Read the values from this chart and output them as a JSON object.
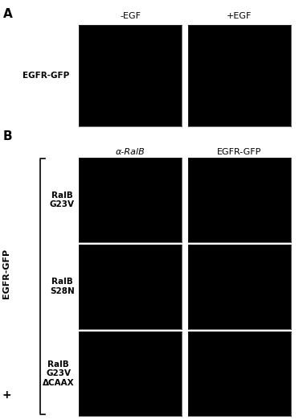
{
  "figure_width": 3.77,
  "figure_height": 5.22,
  "panel_A_label": "A",
  "panel_B_label": "B",
  "col_headers_A": [
    "-EGF",
    "+EGF"
  ],
  "row_label_A": "EGFR-GFP",
  "col_headers_B": [
    "α-RalB",
    "EGFR-GFP"
  ],
  "row_labels_B": [
    "RalB\nG23V",
    "RalB\nS28N",
    "RalB\nG23V\nΔCAAX"
  ],
  "y_label_B": "EGFR-GFP",
  "plus_label": "+",
  "text_color": "#000000",
  "header_fontsize": 8,
  "panel_label_fontsize": 11,
  "row_label_fontsize": 7.5,
  "y_label_fontsize": 8
}
